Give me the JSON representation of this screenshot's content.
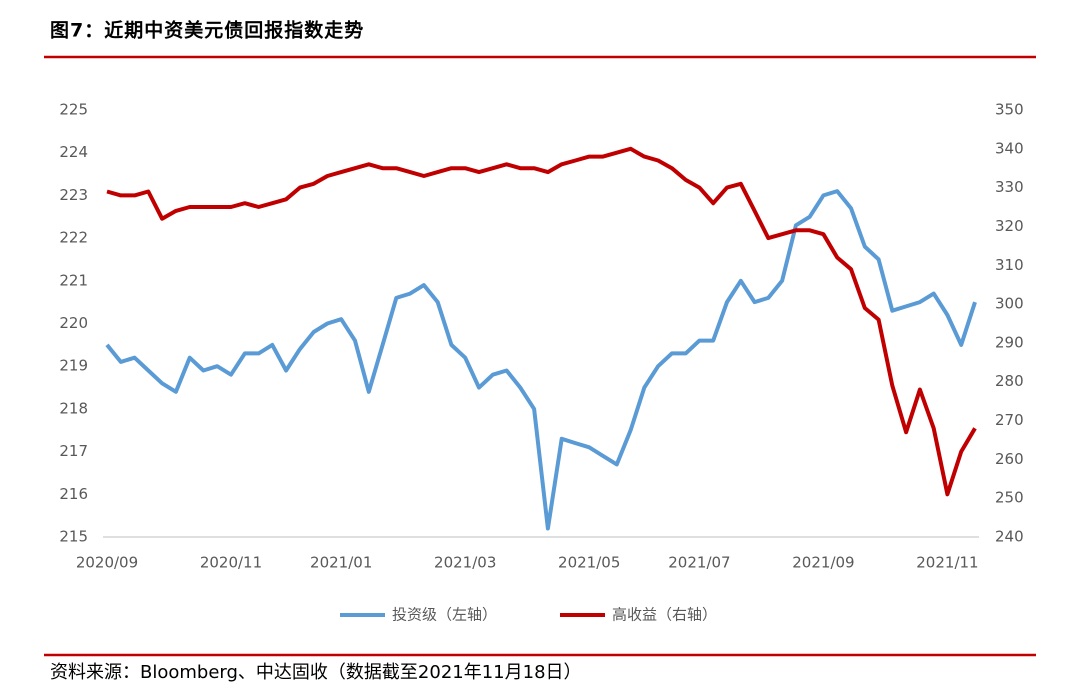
{
  "chart_data": {
    "type": "line",
    "title": "图7：近期中资美元债回报指数走势",
    "source": "资料来源：Bloomberg、中达固收（数据截至2021年11月18日）",
    "categories": [
      "2020/09",
      null,
      null,
      null,
      null,
      null,
      null,
      null,
      null,
      "2020/11",
      null,
      null,
      null,
      null,
      null,
      null,
      null,
      "2021/01",
      null,
      null,
      null,
      null,
      null,
      null,
      null,
      null,
      "2021/03",
      null,
      null,
      null,
      null,
      null,
      null,
      null,
      null,
      "2021/05",
      null,
      null,
      null,
      null,
      null,
      null,
      null,
      "2021/07",
      null,
      null,
      null,
      null,
      null,
      null,
      null,
      null,
      "2021/09",
      null,
      null,
      null,
      null,
      null,
      null,
      null,
      null,
      "2021/11",
      null,
      null
    ],
    "ylim": [
      215,
      225
    ],
    "yticks": [
      215,
      216,
      217,
      218,
      219,
      220,
      221,
      222,
      223,
      224,
      225
    ],
    "y2lim": [
      240,
      350
    ],
    "y2ticks": [
      240,
      250,
      260,
      270,
      280,
      290,
      300,
      310,
      320,
      330,
      340,
      350
    ],
    "grid": false,
    "legend": "bottom",
    "series": [
      {
        "name": "投资级（左轴）",
        "color": "#5b9bd5",
        "axis": "y",
        "values": [
          219.5,
          219.1,
          219.2,
          218.9,
          218.6,
          218.4,
          219.2,
          218.9,
          219.0,
          218.8,
          219.3,
          219.3,
          219.5,
          218.9,
          219.4,
          219.8,
          220.0,
          220.1,
          219.6,
          218.4,
          219.5,
          220.6,
          220.7,
          220.9,
          220.5,
          219.5,
          219.2,
          218.5,
          218.8,
          218.9,
          218.5,
          218.0,
          215.2,
          217.3,
          217.2,
          217.1,
          216.9,
          216.7,
          217.5,
          218.5,
          219.0,
          219.3,
          219.3,
          219.6,
          219.6,
          220.5,
          221.0,
          220.5,
          220.6,
          221.0,
          222.3,
          222.5,
          223.0,
          223.1,
          222.7,
          221.8,
          221.5,
          220.3,
          220.4,
          220.5,
          220.7,
          220.2,
          219.5,
          220.5
        ]
      },
      {
        "name": "高收益（右轴）",
        "color": "#c00000",
        "axis": "y2",
        "values": [
          329,
          328,
          328,
          329,
          322,
          324,
          325,
          325,
          325,
          325,
          326,
          325,
          326,
          327,
          330,
          331,
          333,
          334,
          335,
          336,
          335,
          335,
          334,
          333,
          334,
          335,
          335,
          334,
          335,
          336,
          335,
          335,
          334,
          336,
          337,
          338,
          338,
          339,
          340,
          338,
          337,
          335,
          332,
          330,
          326,
          330,
          331,
          324,
          317,
          318,
          319,
          319,
          318,
          312,
          309,
          299,
          296,
          279,
          267,
          278,
          268,
          251,
          262,
          268
        ]
      }
    ]
  }
}
